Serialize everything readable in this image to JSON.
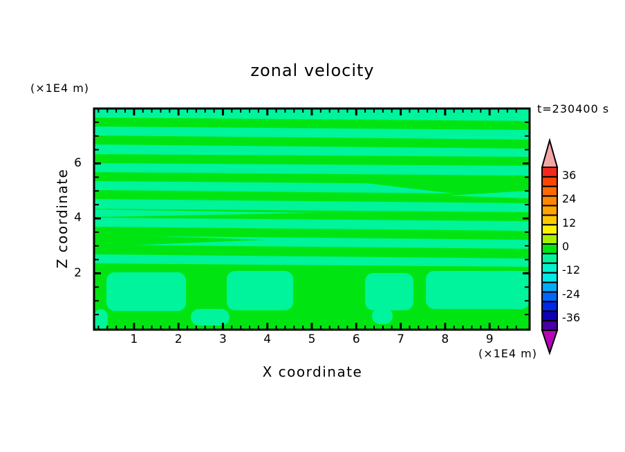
{
  "figure": {
    "title": "zonal velocity",
    "time_label": "t=230400 s",
    "x_axis_label": "X coordinate",
    "x_axis_unit": "(×1E4 m)",
    "y_axis_label": "Z coordinate",
    "y_axis_unit": "(×1E4 m)"
  },
  "chart_data": {
    "type": "heatmap",
    "subtype": "filled-contour",
    "title": "zonal velocity",
    "time_annotation": "t=230400 s",
    "xlabel": "X coordinate",
    "xunit": "(×1E4 m)",
    "ylabel": "Z coordinate",
    "yunit": "(×1E4 m)",
    "xlim": [
      0.1,
      9.9
    ],
    "ylim": [
      0,
      8.05
    ],
    "x_ticks_major": [
      1,
      2,
      3,
      4,
      5,
      6,
      7,
      8,
      9
    ],
    "x_minor_step": 0.2,
    "y_ticks_major": [
      2,
      4,
      6
    ],
    "y_minor_step": 0.5,
    "grid": false,
    "colorbar": {
      "position": "right",
      "tick_labels": [
        36,
        24,
        12,
        0,
        -12,
        -24,
        -36
      ],
      "band_interval": 5,
      "band_colors_top_to_bottom": [
        "#F5291B",
        "#FF4600",
        "#FF6B00",
        "#FF8800",
        "#FFA500",
        "#FFC800",
        "#FFF200",
        "#A6F000",
        "#00E512",
        "#00F49B",
        "#00F2CE",
        "#00E9E9",
        "#00ACF5",
        "#0066FF",
        "#0028E8",
        "#0E00B8",
        "#4800A4"
      ],
      "over_color": "#F4A6A6",
      "under_color": "#B607B6"
    },
    "field": {
      "description": "Zonal velocity field: thin alternating horizontal shear bands near 0 (green = band containing 0, mint = slightly negative band) over z=2..8; broad convective blobs below z=2",
      "band_near_zero_color": "#00E512",
      "band_negative_color": "#00F49B",
      "near_zero_value": 0,
      "negative_value": -5,
      "stripes_green": [
        {
          "x0": 0,
          "x1": 630,
          "yl": 13,
          "yr": 18,
          "h": 13
        },
        {
          "x0": 0,
          "x1": 630,
          "yl": 39,
          "yr": 45,
          "h": 13
        },
        {
          "x0": 0,
          "x1": 630,
          "yl": 66,
          "yr": 70,
          "h": 13
        },
        {
          "x0": 0,
          "x1": 630,
          "yl": 92,
          "yr": 97,
          "h": 13
        },
        {
          "x0": 0,
          "x1": 630,
          "yl": 118,
          "yr": 124,
          "h": 13
        },
        {
          "x0": 0,
          "x1": 630,
          "yl": 145,
          "yr": 150,
          "h": 13
        },
        {
          "x0": 0,
          "x1": 630,
          "yl": 171,
          "yr": 177,
          "h": 13
        },
        {
          "x0": 0,
          "x1": 630,
          "yl": 197,
          "yr": 203,
          "h": 14
        },
        {
          "x0": 0,
          "x1": 630,
          "yl": 224,
          "yr": 229,
          "h": 14
        }
      ],
      "merges_green": [
        [
          [
            360,
            104
          ],
          [
            630,
            99
          ],
          [
            630,
            136
          ]
        ],
        [
          [
            250,
            190
          ],
          [
            0,
            182
          ],
          [
            0,
            200
          ]
        ]
      ],
      "splits_mint": [
        [
          [
            0,
            146
          ],
          [
            320,
            151
          ],
          [
            0,
            157
          ]
        ],
        [
          [
            630,
            119
          ],
          [
            512,
            126
          ],
          [
            630,
            130
          ]
        ]
      ],
      "bottom_region": {
        "y_top": 232,
        "background": "#00E512",
        "mint_blobs": [
          {
            "x": 18,
            "y": 237,
            "w": 115,
            "h": 56
          },
          {
            "x": 140,
            "y": 290,
            "w": 56,
            "h": 24
          },
          {
            "x": 192,
            "y": 235,
            "w": 96,
            "h": 57
          },
          {
            "x": 392,
            "y": 238,
            "w": 70,
            "h": 54
          },
          {
            "x": 402,
            "y": 288,
            "w": 30,
            "h": 24
          },
          {
            "x": 480,
            "y": 235,
            "w": 150,
            "h": 55
          },
          {
            "x": 0,
            "y": 290,
            "w": 20,
            "h": 30
          }
        ]
      }
    }
  }
}
